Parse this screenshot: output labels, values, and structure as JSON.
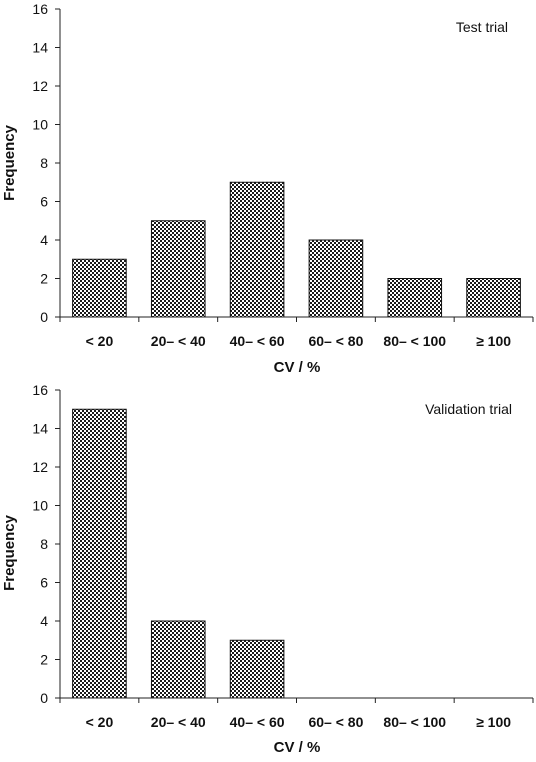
{
  "chart_data": [
    {
      "type": "bar",
      "annotation": "Test trial",
      "xlabel": "CV / %",
      "ylabel": "Frequency",
      "categories": [
        "< 20",
        "20– < 40",
        "40– < 60",
        "60– < 80",
        "80– < 100",
        "≥ 100"
      ],
      "values": [
        3,
        5,
        7,
        4,
        2,
        2
      ],
      "ylim": [
        0,
        16
      ],
      "yticks": [
        0,
        2,
        4,
        6,
        8,
        10,
        12,
        14,
        16
      ],
      "grid": false,
      "legend": "none",
      "bar_fill": "checkered"
    },
    {
      "type": "bar",
      "annotation": "Validation trial",
      "xlabel": "CV / %",
      "ylabel": "Frequency",
      "categories": [
        "< 20",
        "20– < 40",
        "40– < 60",
        "60– < 80",
        "80– < 100",
        "≥ 100"
      ],
      "values": [
        15,
        4,
        3,
        0,
        0,
        0
      ],
      "ylim": [
        0,
        16
      ],
      "yticks": [
        0,
        2,
        4,
        6,
        8,
        10,
        12,
        14,
        16
      ],
      "grid": false,
      "legend": "none",
      "bar_fill": "checkered"
    }
  ],
  "colors": {
    "axis": "#222222",
    "bar_dark": "#1a1a1a",
    "bar_light": "#ffffff",
    "text": "#111111"
  }
}
